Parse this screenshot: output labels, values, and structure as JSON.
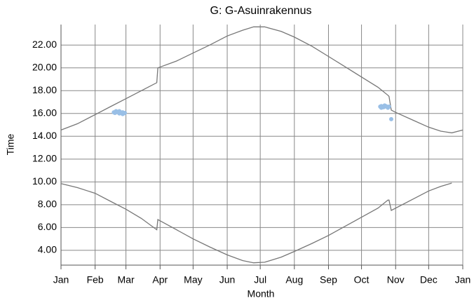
{
  "chart_data": {
    "type": "line",
    "title": "G: G-Asuinrakennus",
    "xlabel": "Month",
    "ylabel": "Time",
    "xlim": [
      0,
      365
    ],
    "xticks": [
      {
        "value": 0,
        "label": "Jan"
      },
      {
        "value": 31,
        "label": "Feb"
      },
      {
        "value": 59,
        "label": "Mar"
      },
      {
        "value": 90,
        "label": "Apr"
      },
      {
        "value": 120,
        "label": "May"
      },
      {
        "value": 151,
        "label": "Jun"
      },
      {
        "value": 181,
        "label": "Jul"
      },
      {
        "value": 212,
        "label": "Aug"
      },
      {
        "value": 243,
        "label": "Sep"
      },
      {
        "value": 273,
        "label": "Oct"
      },
      {
        "value": 304,
        "label": "Nov"
      },
      {
        "value": 334,
        "label": "Dec"
      },
      {
        "value": 365,
        "label": "Jan"
      }
    ],
    "ylim": [
      2.7,
      23.8
    ],
    "yticks": [
      {
        "value": 4,
        "label": "4.00"
      },
      {
        "value": 6,
        "label": "6.00"
      },
      {
        "value": 8,
        "label": "8.00"
      },
      {
        "value": 10,
        "label": "10.00"
      },
      {
        "value": 12,
        "label": "12.00"
      },
      {
        "value": 14,
        "label": "14.00"
      },
      {
        "value": 16,
        "label": "16.00"
      },
      {
        "value": 18,
        "label": "18.00"
      },
      {
        "value": 20,
        "label": "20.00"
      },
      {
        "value": 22,
        "label": "22.00"
      }
    ],
    "grid": true,
    "series": [
      {
        "color": "#777777",
        "x": [
          0,
          15,
          31,
          45,
          59,
          73,
          87,
          88,
          105,
          120,
          135,
          151,
          165,
          175,
          185,
          200,
          212,
          228,
          243,
          258,
          273,
          288,
          297,
          298,
          300,
          304,
          320,
          334,
          345,
          355,
          365
        ],
        "values": [
          14.55,
          15.1,
          15.9,
          16.6,
          17.3,
          18.0,
          18.7,
          20.0,
          20.6,
          21.3,
          22.0,
          22.8,
          23.3,
          23.6,
          23.6,
          23.2,
          22.7,
          21.9,
          21.0,
          20.1,
          19.2,
          18.3,
          17.6,
          17.5,
          16.3,
          16.1,
          15.4,
          14.8,
          14.45,
          14.3,
          14.55
        ]
      },
      {
        "color": "#777777",
        "x": [
          0,
          15,
          31,
          45,
          59,
          73,
          87,
          88,
          105,
          120,
          135,
          151,
          165,
          175,
          185,
          200,
          212,
          228,
          243,
          258,
          273,
          288,
          297,
          298,
          300,
          320,
          334,
          345,
          355
        ],
        "values": [
          9.85,
          9.5,
          9.0,
          8.3,
          7.6,
          6.8,
          5.8,
          6.7,
          5.8,
          5.0,
          4.3,
          3.6,
          3.1,
          2.9,
          2.95,
          3.4,
          3.9,
          4.6,
          5.3,
          6.1,
          6.9,
          7.7,
          8.4,
          8.4,
          7.5,
          8.5,
          9.2,
          9.6,
          9.9
        ]
      }
    ],
    "points": {
      "color": "#99bfe6",
      "x": [
        48,
        49,
        50,
        51,
        52,
        53,
        54,
        55,
        56,
        57,
        58,
        50,
        53,
        56,
        290,
        291,
        292,
        293,
        294,
        295,
        296,
        297,
        298,
        291,
        294,
        297,
        300
      ],
      "values": [
        16.1,
        16.05,
        16.1,
        16.15,
        16.1,
        16.0,
        16.1,
        16.05,
        16.1,
        16.0,
        16.05,
        16.2,
        16.2,
        15.95,
        16.6,
        16.65,
        16.6,
        16.55,
        16.6,
        16.65,
        16.6,
        16.55,
        16.6,
        16.5,
        16.7,
        16.5,
        15.5
      ]
    }
  }
}
